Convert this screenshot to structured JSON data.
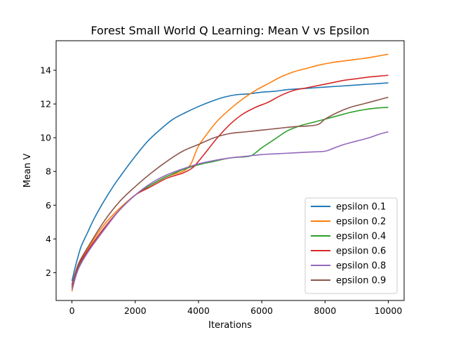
{
  "chart_data": {
    "type": "line",
    "title": "Forest Small World Q Learning: Mean V vs Epsilon",
    "xlabel": "Iterations",
    "ylabel": "Mean V",
    "xlim": [
      -500,
      10500
    ],
    "ylim": [
      0.35,
      15.75
    ],
    "xticks": [
      0,
      2000,
      4000,
      6000,
      8000,
      10000
    ],
    "yticks": [
      2,
      4,
      6,
      8,
      10,
      12,
      14
    ],
    "xtick_labels": [
      "0",
      "2000",
      "4000",
      "6000",
      "8000",
      "10000"
    ],
    "ytick_labels": [
      "2",
      "4",
      "6",
      "8",
      "10",
      "12",
      "14"
    ],
    "grid": false,
    "legend_position": "lower right",
    "series": [
      {
        "name": "epsilon 0.1",
        "color": "#1f77b4",
        "points": [
          [
            0,
            1.5
          ],
          [
            100,
            2.3
          ],
          [
            200,
            3.0
          ],
          [
            300,
            3.6
          ],
          [
            500,
            4.4
          ],
          [
            700,
            5.2
          ],
          [
            1000,
            6.2
          ],
          [
            1300,
            7.1
          ],
          [
            1600,
            7.9
          ],
          [
            2000,
            8.9
          ],
          [
            2400,
            9.8
          ],
          [
            2800,
            10.5
          ],
          [
            3200,
            11.1
          ],
          [
            3600,
            11.5
          ],
          [
            4000,
            11.85
          ],
          [
            4400,
            12.15
          ],
          [
            4800,
            12.4
          ],
          [
            5200,
            12.55
          ],
          [
            5600,
            12.6
          ],
          [
            6000,
            12.7
          ],
          [
            6400,
            12.75
          ],
          [
            6800,
            12.85
          ],
          [
            7200,
            12.9
          ],
          [
            7600,
            12.95
          ],
          [
            8000,
            13.0
          ],
          [
            8400,
            13.05
          ],
          [
            8800,
            13.1
          ],
          [
            9200,
            13.15
          ],
          [
            9600,
            13.2
          ],
          [
            10000,
            13.25
          ]
        ]
      },
      {
        "name": "epsilon 0.2",
        "color": "#ff7f0e",
        "points": [
          [
            0,
            0.9
          ],
          [
            200,
            2.3
          ],
          [
            500,
            3.4
          ],
          [
            1000,
            4.8
          ],
          [
            1500,
            5.8
          ],
          [
            2000,
            6.6
          ],
          [
            2500,
            7.2
          ],
          [
            3000,
            7.7
          ],
          [
            3500,
            8.0
          ],
          [
            3700,
            8.3
          ],
          [
            3800,
            8.6
          ],
          [
            4000,
            9.5
          ],
          [
            4300,
            10.3
          ],
          [
            4600,
            11.0
          ],
          [
            5000,
            11.7
          ],
          [
            5400,
            12.3
          ],
          [
            5800,
            12.8
          ],
          [
            6200,
            13.2
          ],
          [
            6600,
            13.6
          ],
          [
            7000,
            13.9
          ],
          [
            7400,
            14.1
          ],
          [
            7800,
            14.3
          ],
          [
            8200,
            14.45
          ],
          [
            8600,
            14.55
          ],
          [
            9000,
            14.65
          ],
          [
            9400,
            14.75
          ],
          [
            9700,
            14.85
          ],
          [
            10000,
            14.95
          ]
        ]
      },
      {
        "name": "epsilon 0.4",
        "color": "#2ca02c",
        "points": [
          [
            0,
            1.1
          ],
          [
            200,
            2.3
          ],
          [
            500,
            3.3
          ],
          [
            1000,
            4.6
          ],
          [
            1500,
            5.7
          ],
          [
            2000,
            6.6
          ],
          [
            2500,
            7.2
          ],
          [
            3000,
            7.7
          ],
          [
            3500,
            8.1
          ],
          [
            4000,
            8.4
          ],
          [
            4500,
            8.6
          ],
          [
            5000,
            8.8
          ],
          [
            5600,
            8.9
          ],
          [
            5800,
            9.1
          ],
          [
            6000,
            9.4
          ],
          [
            6400,
            9.9
          ],
          [
            6800,
            10.4
          ],
          [
            7200,
            10.7
          ],
          [
            7600,
            10.9
          ],
          [
            8000,
            11.1
          ],
          [
            8400,
            11.3
          ],
          [
            8800,
            11.5
          ],
          [
            9200,
            11.65
          ],
          [
            9600,
            11.75
          ],
          [
            10000,
            11.8
          ]
        ]
      },
      {
        "name": "epsilon 0.6",
        "color": "#d62728",
        "points": [
          [
            0,
            1.2
          ],
          [
            200,
            2.4
          ],
          [
            500,
            3.3
          ],
          [
            1000,
            4.6
          ],
          [
            1500,
            5.7
          ],
          [
            2000,
            6.6
          ],
          [
            2500,
            7.1
          ],
          [
            3000,
            7.6
          ],
          [
            3500,
            7.9
          ],
          [
            3800,
            8.2
          ],
          [
            4000,
            8.6
          ],
          [
            4300,
            9.3
          ],
          [
            4600,
            10.0
          ],
          [
            5000,
            10.8
          ],
          [
            5400,
            11.4
          ],
          [
            5800,
            11.8
          ],
          [
            6200,
            12.1
          ],
          [
            6600,
            12.5
          ],
          [
            7000,
            12.8
          ],
          [
            7400,
            12.95
          ],
          [
            7800,
            13.1
          ],
          [
            8200,
            13.25
          ],
          [
            8600,
            13.4
          ],
          [
            9000,
            13.5
          ],
          [
            9400,
            13.6
          ],
          [
            9700,
            13.65
          ],
          [
            10000,
            13.7
          ]
        ]
      },
      {
        "name": "epsilon 0.8",
        "color": "#9467bd",
        "points": [
          [
            0,
            1.0
          ],
          [
            200,
            2.2
          ],
          [
            500,
            3.2
          ],
          [
            1000,
            4.5
          ],
          [
            1500,
            5.7
          ],
          [
            2000,
            6.6
          ],
          [
            2500,
            7.3
          ],
          [
            3000,
            7.8
          ],
          [
            3500,
            8.15
          ],
          [
            4000,
            8.45
          ],
          [
            4500,
            8.65
          ],
          [
            5000,
            8.8
          ],
          [
            5500,
            8.9
          ],
          [
            6000,
            9.0
          ],
          [
            6500,
            9.05
          ],
          [
            7000,
            9.1
          ],
          [
            7500,
            9.15
          ],
          [
            8000,
            9.2
          ],
          [
            8300,
            9.4
          ],
          [
            8600,
            9.6
          ],
          [
            9000,
            9.8
          ],
          [
            9400,
            10.0
          ],
          [
            9700,
            10.2
          ],
          [
            10000,
            10.35
          ]
        ]
      },
      {
        "name": "epsilon 0.9",
        "color": "#8c564b",
        "points": [
          [
            0,
            1.3
          ],
          [
            200,
            2.5
          ],
          [
            500,
            3.5
          ],
          [
            1000,
            5.0
          ],
          [
            1500,
            6.2
          ],
          [
            2000,
            7.1
          ],
          [
            2500,
            7.9
          ],
          [
            3000,
            8.6
          ],
          [
            3500,
            9.2
          ],
          [
            4000,
            9.6
          ],
          [
            4500,
            10.0
          ],
          [
            5000,
            10.25
          ],
          [
            5500,
            10.35
          ],
          [
            6000,
            10.45
          ],
          [
            6500,
            10.55
          ],
          [
            7000,
            10.65
          ],
          [
            7500,
            10.7
          ],
          [
            7800,
            10.8
          ],
          [
            8000,
            11.1
          ],
          [
            8400,
            11.5
          ],
          [
            8800,
            11.8
          ],
          [
            9200,
            12.0
          ],
          [
            9600,
            12.2
          ],
          [
            10000,
            12.4
          ]
        ]
      }
    ]
  }
}
